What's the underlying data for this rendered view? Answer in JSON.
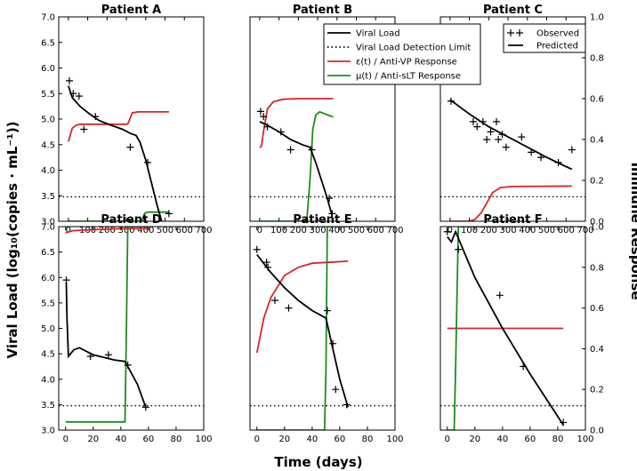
{
  "figure": {
    "ylabel_left": "Viral Load (log₁₀(copies · mL⁻¹))",
    "ylabel_right": "Immune Response",
    "xlabel": "Time (days)"
  },
  "legend_main": [
    {
      "label": "Viral Load",
      "style": "solid",
      "color": "#000000"
    },
    {
      "label": "Viral Load Detection Limit",
      "style": "dotted",
      "color": "#000000"
    },
    {
      "label": "ε(t) / Anti-VP Response",
      "style": "solid",
      "color": "#d62728"
    },
    {
      "label": "μ(t) / Anti-sLT Response",
      "style": "solid",
      "color": "#1f8a1f"
    }
  ],
  "legend_obs": [
    {
      "label": "Observed",
      "marker": "+"
    },
    {
      "label": "Predicted",
      "style": "solid"
    }
  ],
  "colors": {
    "viral": "#000000",
    "anti_vp": "#d62728",
    "anti_slt": "#1f8a1f"
  },
  "chart_data": [
    {
      "type": "line",
      "title": "Patient A",
      "xlim": [
        -50,
        700
      ],
      "xticks": [
        0,
        100,
        200,
        300,
        400,
        500,
        600,
        700
      ],
      "ylim": [
        3.0,
        7.0
      ],
      "yticks": [
        3.0,
        3.5,
        4.0,
        4.5,
        5.0,
        5.5,
        6.0,
        6.5,
        7.0
      ],
      "y2lim": [
        0,
        1.0
      ],
      "detection_limit": 3.48,
      "observed": [
        [
          5,
          5.75
        ],
        [
          25,
          5.5
        ],
        [
          55,
          5.45
        ],
        [
          80,
          4.8
        ],
        [
          140,
          5.05
        ],
        [
          320,
          4.45
        ],
        [
          410,
          4.15
        ],
        [
          520,
          3.15
        ]
      ],
      "viral_load": [
        [
          0,
          5.65
        ],
        [
          20,
          5.42
        ],
        [
          60,
          5.25
        ],
        [
          110,
          5.1
        ],
        [
          160,
          4.97
        ],
        [
          220,
          4.88
        ],
        [
          280,
          4.8
        ],
        [
          320,
          4.72
        ],
        [
          350,
          4.68
        ],
        [
          370,
          4.55
        ],
        [
          400,
          4.2
        ],
        [
          430,
          3.75
        ],
        [
          460,
          3.3
        ],
        [
          490,
          2.9
        ]
      ],
      "anti_vp": [
        [
          0,
          0.39
        ],
        [
          20,
          0.455
        ],
        [
          40,
          0.47
        ],
        [
          60,
          0.475
        ],
        [
          300,
          0.475
        ],
        [
          310,
          0.48
        ],
        [
          330,
          0.53
        ],
        [
          360,
          0.535
        ],
        [
          520,
          0.535
        ]
      ],
      "anti_slt": [
        [
          0,
          0
        ],
        [
          380,
          0
        ],
        [
          395,
          0.04
        ],
        [
          410,
          0.045
        ],
        [
          520,
          0.045
        ]
      ]
    },
    {
      "type": "line",
      "title": "Patient B",
      "xlim": [
        -50,
        700
      ],
      "xticks": [
        0,
        100,
        200,
        300,
        400,
        500,
        600,
        700
      ],
      "ylim": [
        3.0,
        7.0
      ],
      "yticks": [
        3.0,
        3.5,
        4.0,
        4.5,
        5.0,
        5.5,
        6.0,
        6.5,
        7.0
      ],
      "y2lim": [
        0,
        1.0
      ],
      "detection_limit": 3.48,
      "observed": [
        [
          5,
          5.15
        ],
        [
          20,
          5.05
        ],
        [
          40,
          4.85
        ],
        [
          110,
          4.75
        ],
        [
          160,
          4.4
        ],
        [
          270,
          4.4
        ],
        [
          360,
          3.45
        ],
        [
          375,
          3.15
        ]
      ],
      "viral_load": [
        [
          0,
          4.95
        ],
        [
          40,
          4.88
        ],
        [
          100,
          4.75
        ],
        [
          160,
          4.6
        ],
        [
          220,
          4.5
        ],
        [
          260,
          4.45
        ],
        [
          290,
          4.15
        ],
        [
          320,
          3.8
        ],
        [
          350,
          3.45
        ],
        [
          375,
          3.1
        ]
      ],
      "anti_vp": [
        [
          0,
          0.36
        ],
        [
          10,
          0.37
        ],
        [
          20,
          0.44
        ],
        [
          40,
          0.55
        ],
        [
          70,
          0.585
        ],
        [
          120,
          0.597
        ],
        [
          200,
          0.6
        ],
        [
          380,
          0.6
        ]
      ],
      "anti_slt": [
        [
          0,
          0
        ],
        [
          230,
          0
        ],
        [
          245,
          0.02
        ],
        [
          260,
          0.2
        ],
        [
          275,
          0.45
        ],
        [
          290,
          0.52
        ],
        [
          310,
          0.535
        ],
        [
          380,
          0.51
        ]
      ]
    },
    {
      "type": "line",
      "title": "Patient C",
      "xlim": [
        -50,
        700
      ],
      "xticks": [
        0,
        100,
        200,
        300,
        400,
        500,
        600,
        700
      ],
      "ylim": [
        3.0,
        7.0
      ],
      "yticks": [
        3.0,
        3.5,
        4.0,
        4.5,
        5.0,
        5.5,
        6.0,
        6.5,
        7.0
      ],
      "y2lim": [
        0,
        1.0
      ],
      "detection_limit": 3.48,
      "observed": [
        [
          5,
          5.35
        ],
        [
          120,
          4.95
        ],
        [
          140,
          4.85
        ],
        [
          170,
          4.95
        ],
        [
          190,
          4.6
        ],
        [
          210,
          4.75
        ],
        [
          240,
          4.95
        ],
        [
          250,
          4.6
        ],
        [
          270,
          4.7
        ],
        [
          290,
          4.45
        ],
        [
          370,
          4.65
        ],
        [
          420,
          4.35
        ],
        [
          470,
          4.25
        ],
        [
          560,
          4.15
        ],
        [
          630,
          4.4
        ]
      ],
      "viral_load": [
        [
          0,
          5.38
        ],
        [
          100,
          5.1
        ],
        [
          200,
          4.85
        ],
        [
          300,
          4.65
        ],
        [
          400,
          4.45
        ],
        [
          500,
          4.25
        ],
        [
          600,
          4.07
        ],
        [
          630,
          4.02
        ]
      ],
      "anti_vp": [
        [
          0,
          0
        ],
        [
          100,
          0
        ],
        [
          130,
          0.01
        ],
        [
          160,
          0.04
        ],
        [
          190,
          0.09
        ],
        [
          220,
          0.14
        ],
        [
          260,
          0.165
        ],
        [
          320,
          0.17
        ],
        [
          630,
          0.172
        ]
      ]
    },
    {
      "type": "line",
      "title": "Patient D",
      "xlim": [
        -5,
        100
      ],
      "xticks": [
        0,
        20,
        40,
        60,
        80,
        100
      ],
      "ylim": [
        3.0,
        7.0
      ],
      "yticks": [
        3.0,
        3.5,
        4.0,
        4.5,
        5.0,
        5.5,
        6.0,
        6.5,
        7.0
      ],
      "y2lim": [
        0,
        1.0
      ],
      "detection_limit": 3.48,
      "observed": [
        [
          0.5,
          5.95
        ],
        [
          18,
          4.45
        ],
        [
          31,
          4.48
        ],
        [
          45,
          4.28
        ],
        [
          58,
          3.45
        ]
      ],
      "viral_load": [
        [
          0.5,
          5.9
        ],
        [
          1,
          5.2
        ],
        [
          2,
          4.45
        ],
        [
          6,
          4.58
        ],
        [
          10,
          4.62
        ],
        [
          20,
          4.48
        ],
        [
          35,
          4.38
        ],
        [
          43,
          4.35
        ],
        [
          46,
          4.2
        ],
        [
          52,
          3.9
        ],
        [
          58,
          3.45
        ]
      ],
      "anti_vp": [
        [
          0,
          0.97
        ],
        [
          5,
          0.98
        ],
        [
          20,
          0.985
        ],
        [
          40,
          0.99
        ],
        [
          60,
          0.99
        ]
      ],
      "anti_slt": [
        [
          0,
          0.04
        ],
        [
          43,
          0.04
        ],
        [
          44,
          0.5
        ],
        [
          45,
          1.0
        ],
        [
          60,
          1.0
        ]
      ]
    },
    {
      "type": "line",
      "title": "Patient E",
      "xlim": [
        -5,
        100
      ],
      "xticks": [
        0,
        20,
        40,
        60,
        80,
        100
      ],
      "ylim": [
        3.0,
        7.0
      ],
      "yticks": [
        3.0,
        3.5,
        4.0,
        4.5,
        5.0,
        5.5,
        6.0,
        6.5,
        7.0
      ],
      "y2lim": [
        0,
        1.0
      ],
      "detection_limit": 3.48,
      "observed": [
        [
          0,
          6.55
        ],
        [
          7,
          6.3
        ],
        [
          8,
          6.2
        ],
        [
          13,
          5.55
        ],
        [
          23,
          5.4
        ],
        [
          51,
          5.35
        ],
        [
          55,
          4.7
        ],
        [
          57,
          3.8
        ],
        [
          65,
          3.5
        ]
      ],
      "viral_load": [
        [
          0,
          6.45
        ],
        [
          10,
          6.1
        ],
        [
          20,
          5.8
        ],
        [
          30,
          5.55
        ],
        [
          40,
          5.35
        ],
        [
          50,
          5.2
        ],
        [
          55,
          4.6
        ],
        [
          60,
          4.0
        ],
        [
          66,
          3.45
        ]
      ],
      "anti_vp": [
        [
          0,
          0.38
        ],
        [
          5,
          0.55
        ],
        [
          10,
          0.65
        ],
        [
          20,
          0.76
        ],
        [
          30,
          0.8
        ],
        [
          40,
          0.82
        ],
        [
          66,
          0.83
        ]
      ],
      "anti_slt": [
        [
          0,
          0
        ],
        [
          49,
          0
        ],
        [
          50,
          0.3
        ],
        [
          51,
          1.0
        ],
        [
          66,
          1.0
        ]
      ]
    },
    {
      "type": "line",
      "title": "Patient F",
      "xlim": [
        -5,
        100
      ],
      "xticks": [
        0,
        20,
        40,
        60,
        80,
        100
      ],
      "ylim": [
        3.0,
        7.0
      ],
      "yticks": [
        3.0,
        3.5,
        4.0,
        4.5,
        5.0,
        5.5,
        6.0,
        6.5,
        7.0
      ],
      "y2lim": [
        0,
        1.0
      ],
      "detection_limit": 3.48,
      "observed": [
        [
          0,
          6.9
        ],
        [
          8,
          6.55
        ],
        [
          38,
          5.65
        ],
        [
          55,
          4.25
        ],
        [
          84,
          3.15
        ]
      ],
      "viral_load": [
        [
          0,
          6.8
        ],
        [
          3,
          6.7
        ],
        [
          6,
          6.9
        ],
        [
          20,
          6.0
        ],
        [
          40,
          5.0
        ],
        [
          60,
          4.1
        ],
        [
          84,
          3.1
        ]
      ],
      "anti_vp": [
        [
          0,
          0.5
        ],
        [
          84,
          0.5
        ]
      ],
      "anti_slt": [
        [
          0,
          0
        ],
        [
          5,
          0
        ],
        [
          6,
          0.3
        ],
        [
          8,
          1.0
        ],
        [
          84,
          1.0
        ]
      ]
    }
  ]
}
